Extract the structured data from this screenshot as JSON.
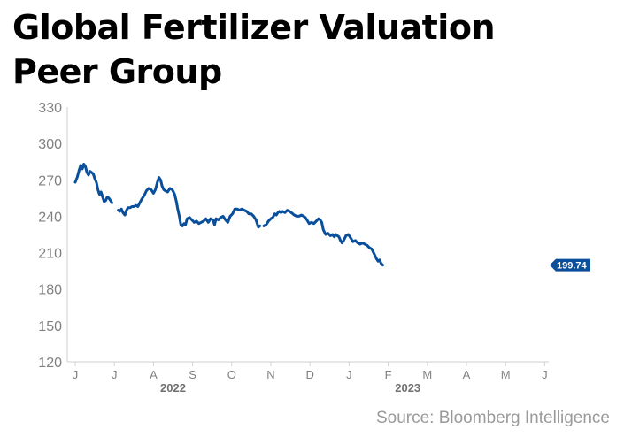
{
  "title_lines": [
    "Global Fertilizer Valuation",
    "Peer Group"
  ],
  "source": "Source: Bloomberg Intelligence",
  "chart_data": {
    "type": "line",
    "title": "Global Fertilizer Valuation Peer Group",
    "ylim": [
      120,
      330
    ],
    "yticks": [
      120,
      150,
      180,
      210,
      240,
      270,
      300,
      330
    ],
    "xticks": [
      "J",
      "J",
      "A",
      "S",
      "O",
      "N",
      "D",
      "J",
      "F",
      "M",
      "A",
      "M",
      "J"
    ],
    "year_labels": [
      {
        "label": "2022",
        "after_tick": 3
      },
      {
        "label": "2023",
        "after_tick": 9
      }
    ],
    "grid": false,
    "color": "#0a4f9c",
    "last_value_label": "199.74",
    "series": [
      {
        "values": [
          [
            0.0,
            268
          ],
          [
            0.05,
            272
          ],
          [
            0.1,
            278
          ],
          [
            0.14,
            282
          ],
          [
            0.18,
            279
          ],
          [
            0.22,
            283
          ],
          [
            0.26,
            281
          ],
          [
            0.3,
            276
          ],
          [
            0.34,
            274
          ],
          [
            0.38,
            277
          ],
          [
            0.42,
            276
          ],
          [
            0.46,
            275
          ],
          [
            0.5,
            271
          ],
          [
            0.54,
            268
          ],
          [
            0.58,
            262
          ],
          [
            0.62,
            258
          ],
          [
            0.66,
            260
          ],
          [
            0.7,
            256
          ],
          [
            0.74,
            252
          ],
          [
            0.78,
            253
          ],
          [
            0.82,
            256
          ],
          [
            0.86,
            255
          ],
          [
            0.9,
            253
          ],
          [
            0.94,
            251
          ],
          [
            1.1,
            245
          ],
          [
            1.14,
            244
          ],
          [
            1.18,
            246
          ],
          [
            1.22,
            243
          ],
          [
            1.27,
            241
          ],
          [
            1.31,
            245
          ],
          [
            1.35,
            247
          ],
          [
            1.4,
            247
          ],
          [
            1.45,
            248
          ],
          [
            1.5,
            248
          ],
          [
            1.55,
            249
          ],
          [
            1.6,
            248
          ],
          [
            1.65,
            251
          ],
          [
            1.7,
            254
          ],
          [
            1.76,
            257
          ],
          [
            1.82,
            261
          ],
          [
            1.88,
            263
          ],
          [
            1.94,
            262
          ],
          [
            2.0,
            259
          ],
          [
            2.05,
            262
          ],
          [
            2.1,
            268
          ],
          [
            2.14,
            272
          ],
          [
            2.18,
            270
          ],
          [
            2.22,
            265
          ],
          [
            2.26,
            262
          ],
          [
            2.3,
            261
          ],
          [
            2.36,
            260
          ],
          [
            2.42,
            263
          ],
          [
            2.48,
            262
          ],
          [
            2.54,
            258
          ],
          [
            2.58,
            253
          ],
          [
            2.62,
            246
          ],
          [
            2.66,
            240
          ],
          [
            2.7,
            233
          ],
          [
            2.74,
            232
          ],
          [
            2.78,
            234
          ],
          [
            2.82,
            233
          ],
          [
            2.86,
            238
          ],
          [
            2.92,
            239
          ],
          [
            2.98,
            237
          ],
          [
            3.04,
            235
          ],
          [
            3.1,
            236
          ],
          [
            3.16,
            234
          ],
          [
            3.22,
            235
          ],
          [
            3.28,
            236
          ],
          [
            3.34,
            238
          ],
          [
            3.4,
            235
          ],
          [
            3.46,
            238
          ],
          [
            3.52,
            237
          ],
          [
            3.56,
            233
          ],
          [
            3.6,
            238
          ],
          [
            3.66,
            237
          ],
          [
            3.72,
            239
          ],
          [
            3.78,
            240
          ],
          [
            3.84,
            237
          ],
          [
            3.9,
            235
          ],
          [
            3.96,
            240
          ],
          [
            4.02,
            242
          ],
          [
            4.08,
            246
          ],
          [
            4.14,
            246
          ],
          [
            4.2,
            245
          ],
          [
            4.26,
            246
          ],
          [
            4.32,
            245
          ],
          [
            4.38,
            244
          ],
          [
            4.44,
            242
          ],
          [
            4.5,
            242
          ],
          [
            4.56,
            240
          ],
          [
            4.62,
            237
          ],
          [
            4.68,
            231
          ],
          [
            4.72,
            232
          ],
          [
            4.82,
            232
          ],
          [
            4.88,
            233
          ],
          [
            4.94,
            236
          ],
          [
            5.0,
            238
          ],
          [
            5.05,
            239
          ],
          [
            5.1,
            242
          ],
          [
            5.14,
            241
          ],
          [
            5.18,
            243
          ],
          [
            5.22,
            244
          ],
          [
            5.26,
            243
          ],
          [
            5.3,
            244
          ],
          [
            5.36,
            243
          ],
          [
            5.42,
            245
          ],
          [
            5.48,
            244
          ],
          [
            5.52,
            243
          ],
          [
            5.56,
            242
          ],
          [
            5.6,
            241
          ],
          [
            5.66,
            240
          ],
          [
            5.72,
            240
          ],
          [
            5.78,
            241
          ],
          [
            5.84,
            240
          ],
          [
            5.88,
            239
          ],
          [
            5.92,
            237
          ],
          [
            5.98,
            234
          ],
          [
            6.04,
            235
          ],
          [
            6.1,
            234
          ],
          [
            6.16,
            236
          ],
          [
            6.22,
            238
          ],
          [
            6.26,
            237
          ],
          [
            6.3,
            235
          ],
          [
            6.34,
            229
          ],
          [
            6.4,
            225
          ],
          [
            6.46,
            226
          ],
          [
            6.52,
            224
          ],
          [
            6.58,
            225
          ],
          [
            6.62,
            223
          ],
          [
            6.66,
            225
          ],
          [
            6.7,
            224
          ],
          [
            6.74,
            223
          ],
          [
            6.78,
            220
          ],
          [
            6.82,
            218
          ],
          [
            6.86,
            220
          ],
          [
            6.92,
            224
          ],
          [
            6.98,
            225
          ],
          [
            7.04,
            222
          ],
          [
            7.1,
            219
          ],
          [
            7.16,
            220
          ],
          [
            7.22,
            218
          ],
          [
            7.28,
            217
          ],
          [
            7.34,
            218
          ],
          [
            7.4,
            217
          ],
          [
            7.46,
            216
          ],
          [
            7.52,
            214
          ],
          [
            7.58,
            213
          ],
          [
            7.64,
            209
          ],
          [
            7.7,
            205
          ],
          [
            7.74,
            203
          ],
          [
            7.78,
            204
          ],
          [
            7.82,
            201
          ],
          [
            7.86,
            199.74
          ]
        ]
      }
    ]
  }
}
